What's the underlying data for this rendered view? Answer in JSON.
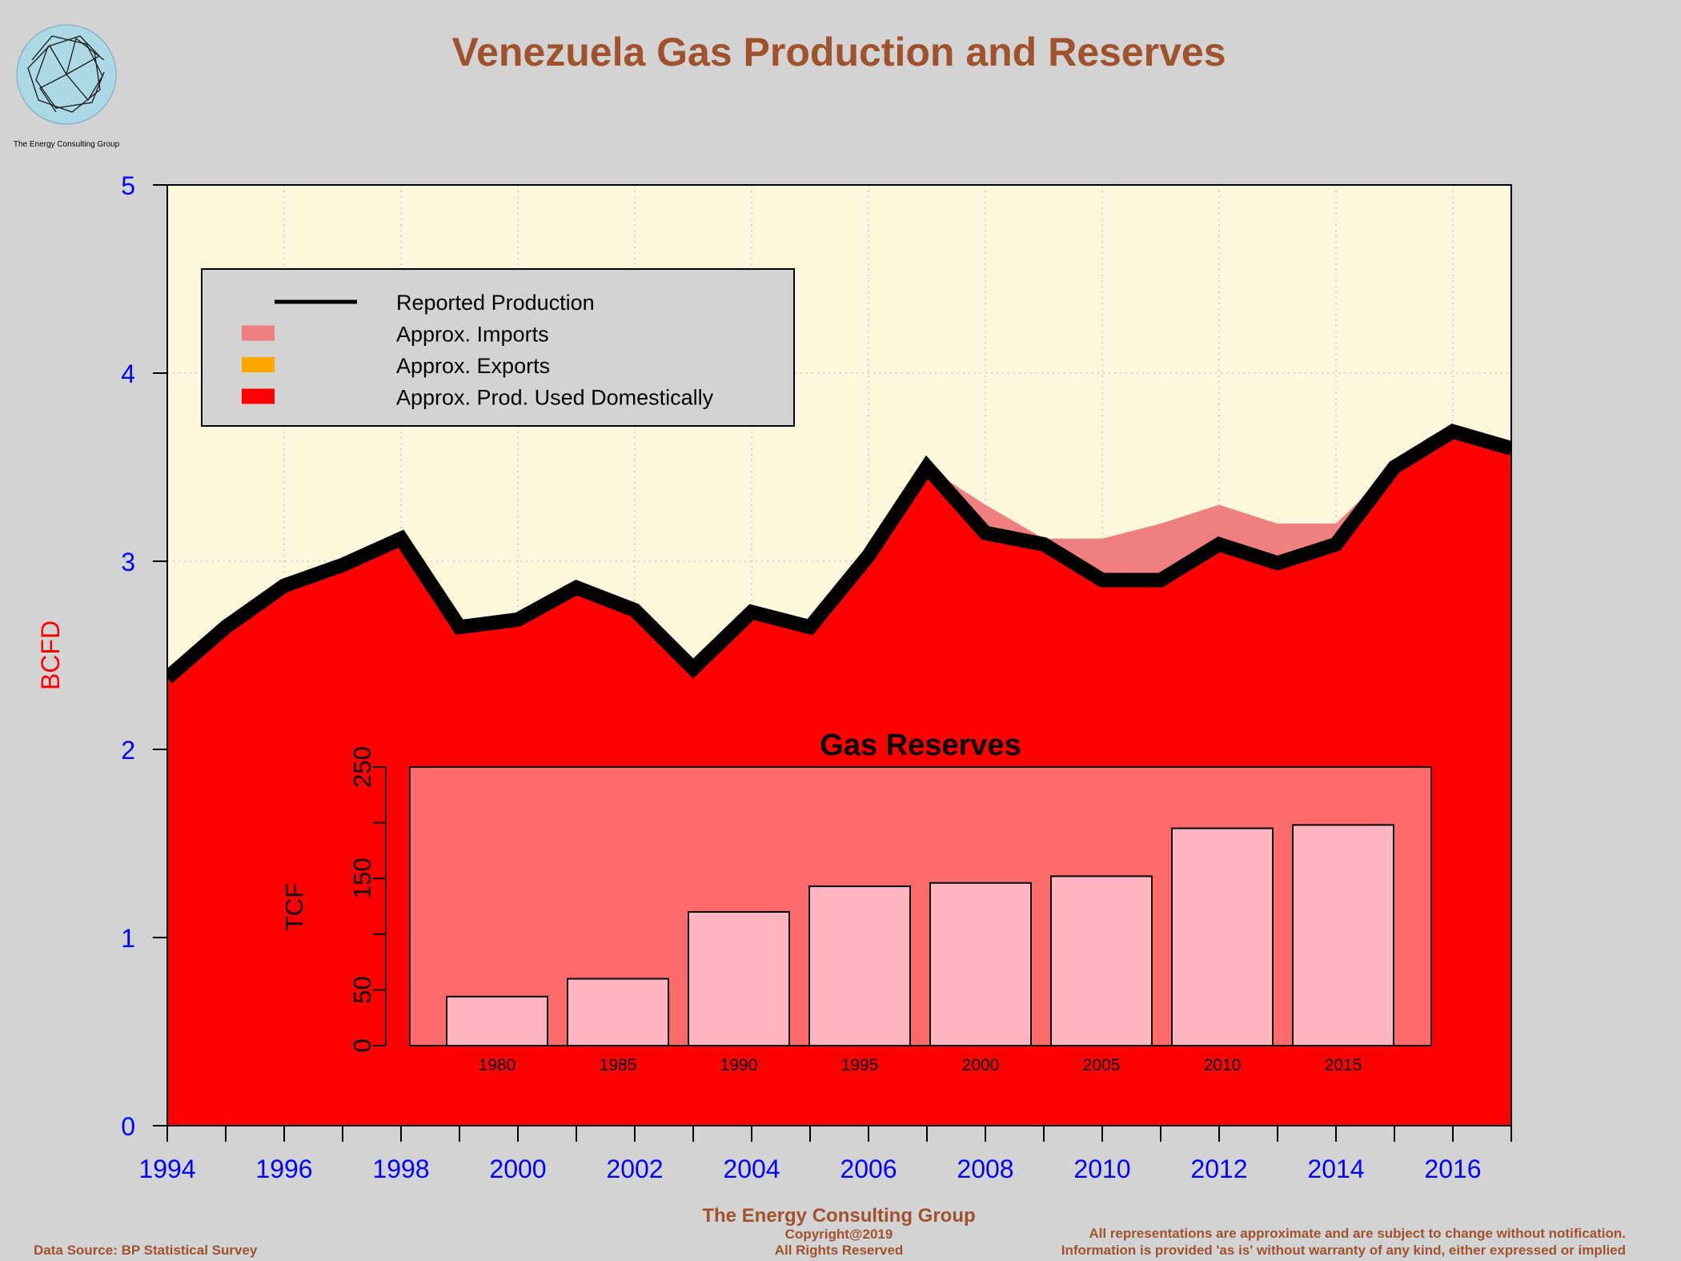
{
  "logo": {
    "caption": "The Energy Consulting Group"
  },
  "colors": {
    "background": "#d3d3d3",
    "plot_bg": "#fff8dc",
    "title": "#a0522d",
    "axis_text": "#0000ff",
    "ylabel": "#ff0000",
    "domestic": "#ff0000",
    "imports": "#f08080",
    "exports": "#ffa500",
    "production_line": "#000000",
    "inset_bg": "#ff6a6a",
    "inset_bar": "#ffb6c1"
  },
  "chart_data": [
    {
      "type": "area",
      "title": "Venezuela Gas Production and Reserves",
      "xlabel": "",
      "ylabel": "BCFD",
      "xlim": [
        1994,
        2017
      ],
      "ylim": [
        0,
        5
      ],
      "x_ticks": [
        1994,
        1995,
        1996,
        1997,
        1998,
        1999,
        2000,
        2001,
        2002,
        2003,
        2004,
        2005,
        2006,
        2007,
        2008,
        2009,
        2010,
        2011,
        2012,
        2013,
        2014,
        2015,
        2016,
        2017
      ],
      "x_tick_labels": [
        "1994",
        "1996",
        "1998",
        "2000",
        "2002",
        "2004",
        "2006",
        "2008",
        "2010",
        "2012",
        "2014",
        "2016"
      ],
      "y_ticks": [
        0,
        1,
        2,
        3,
        4,
        5
      ],
      "y_tick_labels": [
        "0",
        "1",
        "2",
        "3",
        "4",
        "5"
      ],
      "grid": true,
      "legend_position": "top-left",
      "legend": [
        "Reported Production",
        "Approx. Imports",
        "Approx. Exports",
        "Approx. Prod. Used Domestically"
      ],
      "x": [
        1994,
        1995,
        1996,
        1997,
        1998,
        1999,
        2000,
        2001,
        2002,
        2003,
        2004,
        2005,
        2006,
        2007,
        2008,
        2009,
        2010,
        2011,
        2012,
        2013,
        2014,
        2015,
        2016,
        2017
      ],
      "series": [
        {
          "name": "Reported Production",
          "values": [
            2.38,
            2.65,
            2.87,
            2.98,
            3.12,
            2.65,
            2.69,
            2.86,
            2.74,
            2.43,
            2.73,
            2.65,
            3.03,
            3.5,
            3.15,
            3.09,
            2.9,
            2.9,
            3.09,
            2.99,
            3.09,
            3.5,
            3.69,
            3.6
          ]
        },
        {
          "name": "Approx. Imports",
          "values": [
            0,
            0,
            0,
            0,
            0,
            0,
            0,
            0,
            0,
            0,
            0,
            0,
            0,
            0,
            0.15,
            0.03,
            0.22,
            0.3,
            0.21,
            0.21,
            0.11,
            0,
            0,
            0
          ]
        },
        {
          "name": "Approx. Exports",
          "values": [
            0,
            0,
            0,
            0,
            0,
            0,
            0,
            0,
            0,
            0,
            0,
            0,
            0,
            0,
            0,
            0,
            0,
            0,
            0,
            0,
            0,
            0,
            0,
            0
          ]
        },
        {
          "name": "Approx. Prod. Used Domestically",
          "values": [
            2.38,
            2.65,
            2.87,
            2.98,
            3.12,
            2.65,
            2.69,
            2.86,
            2.74,
            2.43,
            2.73,
            2.65,
            3.03,
            3.5,
            3.15,
            3.09,
            2.9,
            2.9,
            3.09,
            2.99,
            3.09,
            3.5,
            3.69,
            3.6
          ]
        }
      ]
    },
    {
      "type": "bar",
      "title": "Gas Reserves",
      "xlabel": "",
      "ylabel": "TCF",
      "ylim": [
        0,
        250
      ],
      "y_ticks": [
        0,
        50,
        100,
        150,
        200,
        250
      ],
      "y_tick_labels": [
        "0",
        "50",
        "150",
        "250"
      ],
      "categories": [
        "1980",
        "1985",
        "1990",
        "1995",
        "2000",
        "2005",
        "2010",
        "2015"
      ],
      "values": [
        44,
        60,
        120,
        143,
        146,
        152,
        195,
        198
      ]
    }
  ],
  "footer": {
    "data_source": "Data Source: BP Statistical Survey",
    "company": "The Energy Consulting Group",
    "copyright": "Copyright@2019",
    "rights": "All Rights Reserved",
    "disclaimer_1": "All representations are approximate and are subject to change without notification.",
    "disclaimer_2": "Information is provided 'as is' without warranty of any kind, either expressed or implied"
  }
}
